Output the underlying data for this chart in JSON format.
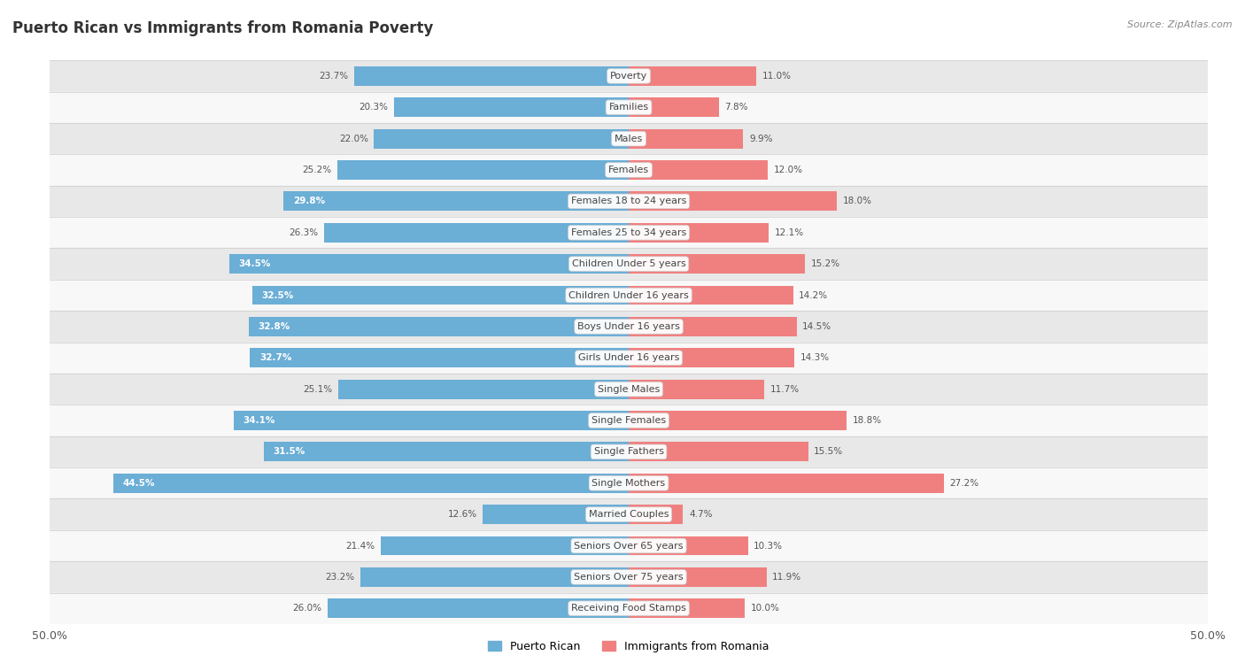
{
  "title": "Puerto Rican vs Immigrants from Romania Poverty",
  "source": "Source: ZipAtlas.com",
  "categories": [
    "Poverty",
    "Families",
    "Males",
    "Females",
    "Females 18 to 24 years",
    "Females 25 to 34 years",
    "Children Under 5 years",
    "Children Under 16 years",
    "Boys Under 16 years",
    "Girls Under 16 years",
    "Single Males",
    "Single Females",
    "Single Fathers",
    "Single Mothers",
    "Married Couples",
    "Seniors Over 65 years",
    "Seniors Over 75 years",
    "Receiving Food Stamps"
  ],
  "puerto_rican": [
    23.7,
    20.3,
    22.0,
    25.2,
    29.8,
    26.3,
    34.5,
    32.5,
    32.8,
    32.7,
    25.1,
    34.1,
    31.5,
    44.5,
    12.6,
    21.4,
    23.2,
    26.0
  ],
  "romania": [
    11.0,
    7.8,
    9.9,
    12.0,
    18.0,
    12.1,
    15.2,
    14.2,
    14.5,
    14.3,
    11.7,
    18.8,
    15.5,
    27.2,
    4.7,
    10.3,
    11.9,
    10.0
  ],
  "blue_color": "#6baed6",
  "pink_color": "#f08080",
  "label_color_dark": "#555555",
  "label_color_white": "#ffffff",
  "bg_color": "#ffffff",
  "row_color_odd": "#e8e8e8",
  "row_color_even": "#f8f8f8",
  "axis_max": 50.0,
  "bar_height": 0.62,
  "title_fontsize": 12,
  "cat_fontsize": 8,
  "value_fontsize": 7.5,
  "legend_label_left": "Puerto Rican",
  "legend_label_right": "Immigrants from Romania"
}
